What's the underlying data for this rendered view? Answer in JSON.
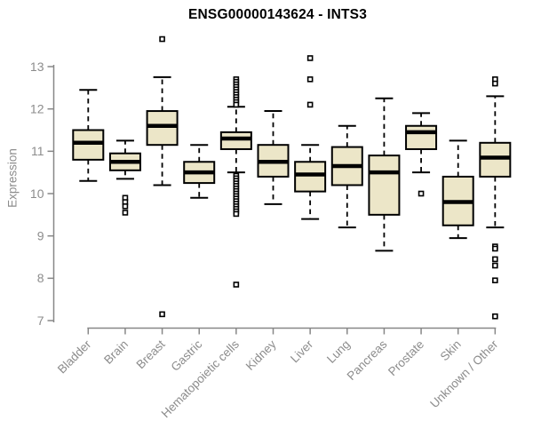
{
  "chart_data": {
    "type": "boxplot",
    "title": "ENSG00000143624 - INTS3",
    "ylabel": "Expression",
    "xlabel": "",
    "ylim": [
      7,
      13
    ],
    "yticks": [
      7,
      8,
      9,
      10,
      11,
      12,
      13
    ],
    "grid": false,
    "legend": "none",
    "colors": {
      "box_fill": "#ece6c8",
      "box_border": "#000000",
      "median": "#000000",
      "axis": "#878787",
      "tick_label": "#8c8c8c",
      "title": "#000000",
      "background": "#ffffff"
    },
    "categories": [
      "Bladder",
      "Brain",
      "Breast",
      "Gastric",
      "Hematopoietic cells",
      "Kidney",
      "Liver",
      "Lung",
      "Pancreas",
      "Prostate",
      "Skin",
      "Unknown / Other"
    ],
    "series": [
      {
        "category": "Bladder",
        "whisker_low": 10.3,
        "q1": 10.8,
        "median": 11.2,
        "q3": 11.5,
        "whisker_high": 12.45,
        "outliers": []
      },
      {
        "category": "Brain",
        "whisker_low": 10.35,
        "q1": 10.55,
        "median": 10.75,
        "q3": 10.95,
        "whisker_high": 11.25,
        "outliers": [
          9.9,
          9.8,
          9.7,
          9.55
        ]
      },
      {
        "category": "Breast",
        "whisker_low": 10.2,
        "q1": 11.15,
        "median": 11.6,
        "q3": 11.95,
        "whisker_high": 12.75,
        "outliers": [
          13.65,
          7.15
        ]
      },
      {
        "category": "Gastric",
        "whisker_low": 9.9,
        "q1": 10.25,
        "median": 10.5,
        "q3": 10.75,
        "whisker_high": 11.15,
        "outliers": []
      },
      {
        "category": "Hematopoietic cells",
        "whisker_low": 10.5,
        "q1": 11.05,
        "median": 11.3,
        "q3": 11.45,
        "whisker_high": 12.05,
        "outliers": [
          12.7,
          12.64,
          12.58,
          12.52,
          12.46,
          12.4,
          12.34,
          12.28,
          12.22,
          12.16,
          12.1,
          10.42,
          10.36,
          10.3,
          10.24,
          10.18,
          10.12,
          10.06,
          10.0,
          9.94,
          9.88,
          9.82,
          9.76,
          9.7,
          9.64,
          9.58,
          9.52,
          7.85
        ]
      },
      {
        "category": "Kidney",
        "whisker_low": 9.75,
        "q1": 10.4,
        "median": 10.75,
        "q3": 11.15,
        "whisker_high": 11.95,
        "outliers": []
      },
      {
        "category": "Liver",
        "whisker_low": 9.4,
        "q1": 10.05,
        "median": 10.45,
        "q3": 10.75,
        "whisker_high": 11.15,
        "outliers": [
          13.2,
          12.7,
          12.1
        ]
      },
      {
        "category": "Lung",
        "whisker_low": 9.2,
        "q1": 10.2,
        "median": 10.65,
        "q3": 11.1,
        "whisker_high": 11.6,
        "outliers": []
      },
      {
        "category": "Pancreas",
        "whisker_low": 8.65,
        "q1": 9.5,
        "median": 10.5,
        "q3": 10.9,
        "whisker_high": 12.25,
        "outliers": []
      },
      {
        "category": "Prostate",
        "whisker_low": 10.5,
        "q1": 11.05,
        "median": 11.45,
        "q3": 11.6,
        "whisker_high": 11.9,
        "outliers": [
          10.0
        ]
      },
      {
        "category": "Skin",
        "whisker_low": 8.95,
        "q1": 9.25,
        "median": 9.8,
        "q3": 10.4,
        "whisker_high": 11.25,
        "outliers": []
      },
      {
        "category": "Unknown / Other",
        "whisker_low": 9.2,
        "q1": 10.4,
        "median": 10.85,
        "q3": 11.2,
        "whisker_high": 12.3,
        "outliers": [
          12.7,
          12.6,
          8.75,
          8.7,
          8.45,
          8.3,
          7.95,
          7.1
        ]
      }
    ]
  }
}
